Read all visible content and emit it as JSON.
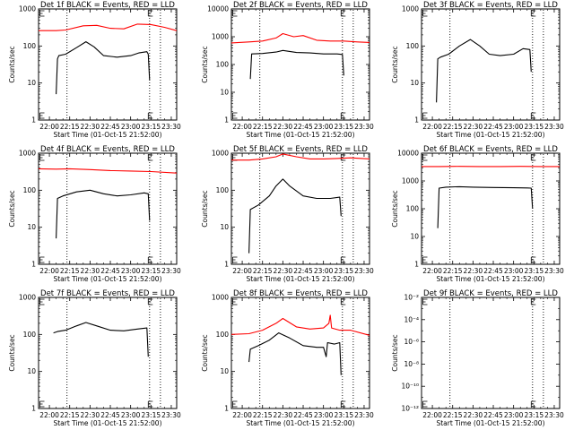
{
  "figure": {
    "type": "multi-panel detector rate time series",
    "grid": "3x3",
    "colors": {
      "events": "#000000",
      "lld": "#ff0000",
      "vline": "#000000"
    }
  },
  "chart_data": [
    {
      "type": "line",
      "title": "Det 1f BLACK = Events, RED = LLD",
      "xlabel": "Start Time (01-Oct-15 21:52:00)",
      "ylabel": "Counts/sec",
      "xticks": [
        "22:00",
        "22:15",
        "22:30",
        "22:45",
        "23:00",
        "23:15",
        "23:30"
      ],
      "ylim": [
        1,
        1000
      ],
      "yscale": "log",
      "yticks": [
        "1",
        "10",
        "100",
        "1000"
      ],
      "xrange": [
        "21:52",
        "23:34"
      ],
      "vlines": [
        "22:13",
        "23:14",
        "23:22"
      ],
      "flags": [
        "21:53",
        "23:13"
      ],
      "series": [
        {
          "color": "red",
          "x": [
            "21:52",
            "22:05",
            "22:12",
            "22:25",
            "22:35",
            "22:45",
            "22:55",
            "23:05",
            "23:15",
            "23:25",
            "23:34"
          ],
          "y": [
            260,
            260,
            270,
            350,
            360,
            300,
            290,
            390,
            380,
            320,
            260
          ]
        },
        {
          "color": "black",
          "x": [
            "22:05",
            "22:06",
            "22:07",
            "22:12",
            "22:20",
            "22:27",
            "22:33",
            "22:40",
            "22:50",
            "23:00",
            "23:06",
            "23:12",
            "23:13",
            "23:14"
          ],
          "y": [
            5,
            45,
            55,
            60,
            90,
            130,
            95,
            55,
            50,
            55,
            65,
            70,
            60,
            12
          ]
        }
      ]
    },
    {
      "type": "line",
      "title": "Det 2f BLACK = Events, RED = LLD",
      "xlabel": "Start Time (01-Oct-15 21:52:00)",
      "ylabel": "Counts/sec",
      "xticks": [
        "22:00",
        "22:15",
        "22:30",
        "22:45",
        "23:00",
        "23:15",
        "23:30"
      ],
      "ylim": [
        1,
        10000
      ],
      "yscale": "log",
      "yticks": [
        "1",
        "10",
        "100",
        "1000",
        "10000"
      ],
      "xrange": [
        "21:52",
        "23:34"
      ],
      "vlines": [
        "22:13",
        "23:14",
        "23:22"
      ],
      "flags": [
        "21:53",
        "23:13"
      ],
      "series": [
        {
          "color": "red",
          "x": [
            "21:52",
            "22:05",
            "22:15",
            "22:25",
            "22:30",
            "22:38",
            "22:45",
            "22:55",
            "23:05",
            "23:15",
            "23:25",
            "23:34"
          ],
          "y": [
            600,
            650,
            700,
            900,
            1300,
            1000,
            1100,
            750,
            700,
            700,
            650,
            620
          ]
        },
        {
          "color": "black",
          "x": [
            "22:06",
            "22:07",
            "22:15",
            "22:25",
            "22:30",
            "22:40",
            "22:50",
            "23:00",
            "23:10",
            "23:14",
            "23:15"
          ],
          "y": [
            30,
            240,
            250,
            280,
            320,
            270,
            260,
            240,
            240,
            230,
            40
          ]
        }
      ]
    },
    {
      "type": "line",
      "title": "Det 3f BLACK = Events, RED = LLD",
      "xlabel": "Start Time (01-Oct-15 21:52:00)",
      "ylabel": "Counts/sec",
      "xticks": [
        "22:00",
        "22:15",
        "22:30",
        "22:45",
        "23:00",
        "23:15",
        "23:30"
      ],
      "ylim": [
        1,
        1000
      ],
      "yscale": "log",
      "yticks": [
        "1",
        "10",
        "100",
        "1000"
      ],
      "xrange": [
        "21:52",
        "23:34"
      ],
      "vlines": [
        "22:13",
        "23:14",
        "23:22"
      ],
      "flags": [
        "21:53",
        "23:13"
      ],
      "series": [
        {
          "color": "black",
          "x": [
            "22:03",
            "22:04",
            "22:06",
            "22:12",
            "22:20",
            "22:28",
            "22:35",
            "22:42",
            "22:50",
            "23:00",
            "23:07",
            "23:12",
            "23:13"
          ],
          "y": [
            3,
            45,
            50,
            60,
            100,
            150,
            100,
            60,
            55,
            60,
            85,
            80,
            20
          ]
        }
      ]
    },
    {
      "type": "line",
      "title": "Det 4f BLACK = Events, RED = LLD",
      "xlabel": "Start Time (01-Oct-15 21:52:00)",
      "ylabel": "Counts/sec",
      "xticks": [
        "22:00",
        "22:15",
        "22:30",
        "22:45",
        "23:00",
        "23:15",
        "23:30"
      ],
      "ylim": [
        1,
        1000
      ],
      "yscale": "log",
      "yticks": [
        "1",
        "10",
        "100",
        "1000"
      ],
      "xrange": [
        "21:52",
        "23:34"
      ],
      "vlines": [
        "22:13",
        "23:14",
        "23:22"
      ],
      "flags": [
        "21:53",
        "23:13"
      ],
      "series": [
        {
          "color": "red",
          "x": [
            "21:52",
            "22:05",
            "22:15",
            "22:30",
            "22:45",
            "23:00",
            "23:15",
            "23:34"
          ],
          "y": [
            380,
            370,
            380,
            360,
            340,
            330,
            320,
            290
          ]
        },
        {
          "color": "black",
          "x": [
            "22:05",
            "22:06",
            "22:10",
            "22:20",
            "22:30",
            "22:40",
            "22:50",
            "23:00",
            "23:10",
            "23:13",
            "23:14"
          ],
          "y": [
            5,
            60,
            70,
            90,
            100,
            80,
            70,
            75,
            85,
            80,
            15
          ]
        }
      ]
    },
    {
      "type": "line",
      "title": "Det 5f BLACK = Events, RED = LLD",
      "xlabel": "Start Time (01-Oct-15 21:52:00)",
      "ylabel": "Counts/sec",
      "xticks": [
        "22:00",
        "22:15",
        "22:30",
        "22:45",
        "23:00",
        "23:15",
        "23:30"
      ],
      "ylim": [
        1,
        1000
      ],
      "yscale": "log",
      "yticks": [
        "1",
        "10",
        "100",
        "1000"
      ],
      "xrange": [
        "21:52",
        "23:34"
      ],
      "vlines": [
        "22:13",
        "23:14",
        "23:22"
      ],
      "flags": [
        "21:53",
        "23:13"
      ],
      "series": [
        {
          "color": "red",
          "x": [
            "21:52",
            "22:05",
            "22:15",
            "22:25",
            "22:30",
            "22:40",
            "22:50",
            "23:00",
            "23:10",
            "23:20",
            "23:34"
          ],
          "y": [
            650,
            650,
            700,
            800,
            950,
            800,
            700,
            700,
            720,
            750,
            700
          ]
        },
        {
          "color": "black",
          "x": [
            "22:05",
            "22:06",
            "22:12",
            "22:20",
            "22:25",
            "22:30",
            "22:35",
            "22:45",
            "22:55",
            "23:05",
            "23:12",
            "23:13"
          ],
          "y": [
            2,
            30,
            40,
            70,
            130,
            200,
            130,
            70,
            60,
            60,
            65,
            20
          ]
        }
      ]
    },
    {
      "type": "line",
      "title": "Det 6f BLACK = Events, RED = LLD",
      "xlabel": "Start Time (01-Oct-15 21:52:00)",
      "ylabel": "Counts/sec",
      "xticks": [
        "22:00",
        "22:15",
        "22:30",
        "22:45",
        "23:00",
        "23:15",
        "23:30"
      ],
      "ylim": [
        1,
        10000
      ],
      "yscale": "log",
      "yticks": [
        "1",
        "10",
        "100",
        "1000",
        "10000"
      ],
      "xrange": [
        "21:52",
        "23:34"
      ],
      "vlines": [
        "22:13",
        "23:14",
        "23:22"
      ],
      "flags": [
        "21:53",
        "23:13"
      ],
      "series": [
        {
          "color": "red",
          "x": [
            "21:52",
            "22:05",
            "22:20",
            "22:35",
            "22:50",
            "23:05",
            "23:20",
            "23:34"
          ],
          "y": [
            3300,
            3300,
            3350,
            3300,
            3300,
            3350,
            3300,
            3300
          ]
        },
        {
          "color": "black",
          "x": [
            "22:04",
            "22:05",
            "22:10",
            "22:20",
            "22:30",
            "22:45",
            "23:00",
            "23:10",
            "23:13",
            "23:14"
          ],
          "y": [
            20,
            550,
            600,
            620,
            600,
            580,
            570,
            560,
            550,
            100
          ]
        }
      ]
    },
    {
      "type": "line",
      "title": "Det 7f BLACK = Events, RED = LLD",
      "xlabel": "Start Time (01-Oct-15 21:52:00)",
      "ylabel": "Counts/sec",
      "xticks": [
        "22:00",
        "22:15",
        "22:30",
        "22:45",
        "23:00",
        "23:15",
        "23:30"
      ],
      "ylim": [
        1,
        1000
      ],
      "yscale": "log",
      "yticks": [
        "1",
        "10",
        "100",
        "1000"
      ],
      "xrange": [
        "21:52",
        "23:34"
      ],
      "vlines": [
        "22:13",
        "23:14",
        "23:22"
      ],
      "flags": [
        "21:53",
        "23:13"
      ],
      "series": [
        {
          "color": "black",
          "x": [
            "22:03",
            "22:06",
            "22:12",
            "22:20",
            "22:27",
            "22:35",
            "22:45",
            "22:55",
            "23:05",
            "23:12",
            "23:13"
          ],
          "y": [
            110,
            120,
            130,
            170,
            210,
            170,
            130,
            125,
            140,
            150,
            25
          ]
        }
      ]
    },
    {
      "type": "line",
      "title": "Det 8f BLACK = Events, RED = LLD",
      "xlabel": "Start Time (01-Oct-15 21:52:00)",
      "ylabel": "Counts/sec",
      "xticks": [
        "22:00",
        "22:15",
        "22:30",
        "22:45",
        "23:00",
        "23:15",
        "23:30"
      ],
      "ylim": [
        1,
        1000
      ],
      "yscale": "log",
      "yticks": [
        "1",
        "10",
        "100",
        "1000"
      ],
      "xrange": [
        "21:52",
        "23:34"
      ],
      "vlines": [
        "22:13",
        "23:14",
        "23:22"
      ],
      "flags": [
        "21:53",
        "23:13"
      ],
      "series": [
        {
          "color": "red",
          "x": [
            "21:52",
            "22:05",
            "22:15",
            "22:25",
            "22:30",
            "22:40",
            "22:50",
            "23:00",
            "23:04",
            "23:05",
            "23:06",
            "23:12",
            "23:20",
            "23:34"
          ],
          "y": [
            100,
            105,
            130,
            200,
            270,
            160,
            140,
            150,
            200,
            330,
            150,
            130,
            130,
            95
          ]
        },
        {
          "color": "black",
          "x": [
            "22:05",
            "22:06",
            "22:12",
            "22:20",
            "22:27",
            "22:35",
            "22:45",
            "22:55",
            "23:00",
            "23:02",
            "23:03",
            "23:08",
            "23:12",
            "23:13"
          ],
          "y": [
            18,
            40,
            50,
            70,
            110,
            80,
            50,
            45,
            45,
            25,
            60,
            55,
            60,
            8
          ]
        }
      ]
    },
    {
      "type": "line",
      "title": "Det 9f BLACK = Events, RED = LLD",
      "xlabel": "Start Time (01-Oct-15 21:52:00)",
      "ylabel": "Counts/sec",
      "xticks": [
        "22:00",
        "22:15",
        "22:30",
        "22:45",
        "23:00",
        "23:15",
        "23:30"
      ],
      "ylim": [
        1e-12,
        0.01
      ],
      "yscale": "log",
      "yticks": [
        "10⁻¹²",
        "10⁻¹⁰",
        "10⁻⁸",
        "10⁻⁶",
        "10⁻⁴",
        "10⁻²"
      ],
      "xrange": [
        "21:52",
        "23:34"
      ],
      "vlines": [
        "22:13",
        "23:14",
        "23:22"
      ],
      "flags": [
        "21:53",
        "23:13"
      ],
      "series": []
    }
  ]
}
